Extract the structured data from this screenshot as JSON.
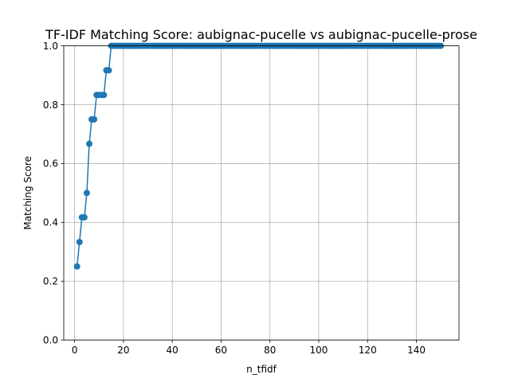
{
  "chart_data": {
    "type": "line",
    "title": "TF-IDF Matching Score: aubignac-pucelle vs aubignac-pucelle-prose",
    "xlabel": "n_tfidf",
    "ylabel": "Matching Score",
    "xlim": [
      -4.45,
      157.45
    ],
    "ylim": [
      0.0,
      1.0
    ],
    "xticks": [
      0,
      20,
      40,
      60,
      80,
      100,
      120,
      140
    ],
    "yticks": [
      0.0,
      0.2,
      0.4,
      0.6,
      0.8,
      1.0
    ],
    "xtick_labels": [
      "0",
      "20",
      "40",
      "60",
      "80",
      "100",
      "120",
      "140"
    ],
    "ytick_labels": [
      "0.0",
      "0.2",
      "0.4",
      "0.6",
      "0.8",
      "1.0"
    ],
    "grid": true,
    "marker": "circle",
    "color": "#1f77b4",
    "series": [
      {
        "x": [
          1,
          2,
          3,
          4,
          5,
          6,
          7,
          8,
          9,
          10,
          11,
          12,
          13,
          14,
          15,
          16,
          17,
          18,
          19,
          20,
          21,
          22,
          23,
          24,
          25,
          26,
          27,
          28,
          29,
          30,
          31,
          32,
          33,
          34,
          35,
          36,
          37,
          38,
          39,
          40,
          41,
          42,
          43,
          44,
          45,
          46,
          47,
          48,
          49,
          50,
          51,
          52,
          53,
          54,
          55,
          56,
          57,
          58,
          59,
          60,
          61,
          62,
          63,
          64,
          65,
          66,
          67,
          68,
          69,
          70,
          71,
          72,
          73,
          74,
          75,
          76,
          77,
          78,
          79,
          80,
          81,
          82,
          83,
          84,
          85,
          86,
          87,
          88,
          89,
          90,
          91,
          92,
          93,
          94,
          95,
          96,
          97,
          98,
          99,
          100,
          101,
          102,
          103,
          104,
          105,
          106,
          107,
          108,
          109,
          110,
          111,
          112,
          113,
          114,
          115,
          116,
          117,
          118,
          119,
          120,
          121,
          122,
          123,
          124,
          125,
          126,
          127,
          128,
          129,
          130,
          131,
          132,
          133,
          134,
          135,
          136,
          137,
          138,
          139,
          140,
          141,
          142,
          143,
          144,
          145,
          146,
          147,
          148,
          149,
          150
        ],
        "y": [
          0.25,
          0.333,
          0.417,
          0.417,
          0.5,
          0.667,
          0.75,
          0.75,
          0.833,
          0.833,
          0.833,
          0.833,
          0.917,
          0.917,
          1,
          1,
          1,
          1,
          1,
          1,
          1,
          1,
          1,
          1,
          1,
          1,
          1,
          1,
          1,
          1,
          1,
          1,
          1,
          1,
          1,
          1,
          1,
          1,
          1,
          1,
          1,
          1,
          1,
          1,
          1,
          1,
          1,
          1,
          1,
          1,
          1,
          1,
          1,
          1,
          1,
          1,
          1,
          1,
          1,
          1,
          1,
          1,
          1,
          1,
          1,
          1,
          1,
          1,
          1,
          1,
          1,
          1,
          1,
          1,
          1,
          1,
          1,
          1,
          1,
          1,
          1,
          1,
          1,
          1,
          1,
          1,
          1,
          1,
          1,
          1,
          1,
          1,
          1,
          1,
          1,
          1,
          1,
          1,
          1,
          1,
          1,
          1,
          1,
          1,
          1,
          1,
          1,
          1,
          1,
          1,
          1,
          1,
          1,
          1,
          1,
          1,
          1,
          1,
          1,
          1,
          1,
          1,
          1,
          1,
          1,
          1,
          1,
          1,
          1,
          1,
          1,
          1,
          1,
          1,
          1,
          1,
          1,
          1,
          1,
          1,
          1,
          1,
          1,
          1,
          1,
          1,
          1,
          1,
          1,
          1
        ]
      }
    ]
  }
}
